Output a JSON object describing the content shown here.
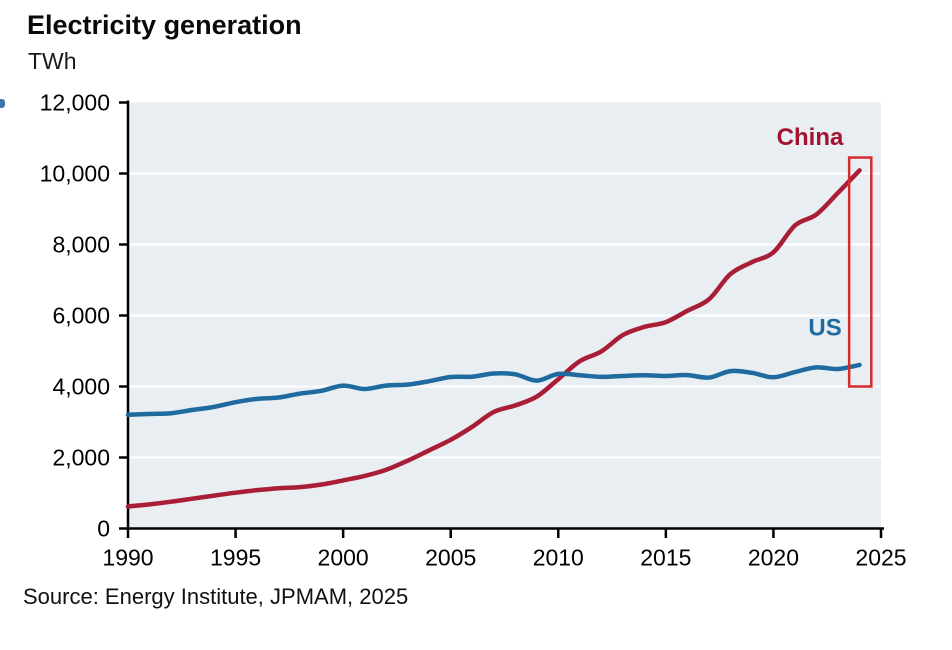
{
  "header": {
    "title": "Electricity generation",
    "subtitle": "TWh"
  },
  "source": "Source: Energy Institute, JPMAM, 2025",
  "colors": {
    "china": "#a91e36",
    "china_label": "#a3122f",
    "us": "#1f6a9e",
    "us_label": "#1f6a9e",
    "plot_bg": "#e9eef3",
    "gridline": "#ffffff",
    "axis": "#000000",
    "tick_label": "#000000",
    "highlight_box": "#d62b2b",
    "edge_mark": "#3f74ae"
  },
  "chart_data": {
    "type": "line",
    "title": "Electricity generation",
    "ylabel": "TWh",
    "xlabel": "",
    "grid": "horizontal-white",
    "legend_position": "inline-labels",
    "xlim": [
      1990,
      2025
    ],
    "ylim": [
      0,
      12000
    ],
    "x_ticks": [
      1990,
      1995,
      2000,
      2005,
      2010,
      2015,
      2020,
      2025
    ],
    "x_tick_labels": [
      "1990",
      "1995",
      "2000",
      "2005",
      "2010",
      "2015",
      "2020",
      "2025"
    ],
    "y_ticks": [
      0,
      2000,
      4000,
      6000,
      8000,
      10000,
      12000
    ],
    "y_tick_labels": [
      "0",
      "2,000",
      "4,000",
      "6,000",
      "8,000",
      "10,000",
      "12,000"
    ],
    "y_gridlines": [
      2000,
      4000,
      6000,
      8000,
      10000
    ],
    "x": [
      1990,
      1991,
      1992,
      1993,
      1994,
      1995,
      1996,
      1997,
      1998,
      1999,
      2000,
      2001,
      2002,
      2003,
      2004,
      2005,
      2006,
      2007,
      2008,
      2009,
      2010,
      2011,
      2012,
      2013,
      2014,
      2015,
      2016,
      2017,
      2018,
      2019,
      2020,
      2021,
      2022,
      2023,
      2024
    ],
    "series": [
      {
        "name": "China",
        "color_key": "china",
        "label_color_key": "china_label",
        "values": [
          621,
          678,
          754,
          839,
          928,
          1008,
          1081,
          1136,
          1167,
          1239,
          1356,
          1481,
          1654,
          1911,
          2203,
          2500,
          2866,
          3282,
          3467,
          3715,
          4207,
          4713,
          4988,
          5447,
          5678,
          5815,
          6133,
          6453,
          7166,
          7503,
          7779,
          8534,
          8849,
          9456,
          10087
        ],
        "label": {
          "text": "China",
          "x": 2021.7,
          "y": 10800
        }
      },
      {
        "name": "US",
        "color_key": "us",
        "label_color_key": "us_label",
        "values": [
          3203,
          3226,
          3247,
          3340,
          3425,
          3558,
          3652,
          3690,
          3800,
          3880,
          4026,
          3930,
          4026,
          4054,
          4148,
          4268,
          4277,
          4367,
          4344,
          4165,
          4354,
          4319,
          4271,
          4297,
          4319,
          4297,
          4322,
          4250,
          4434,
          4385,
          4260,
          4406,
          4539,
          4494,
          4609
        ],
        "label": {
          "text": "US",
          "x": 2022.4,
          "y": 5430
        }
      }
    ],
    "annotations": {
      "highlight_box": {
        "x0": 2023.52,
        "x1": 2024.55,
        "y0": 4000,
        "y1": 10450
      }
    }
  }
}
